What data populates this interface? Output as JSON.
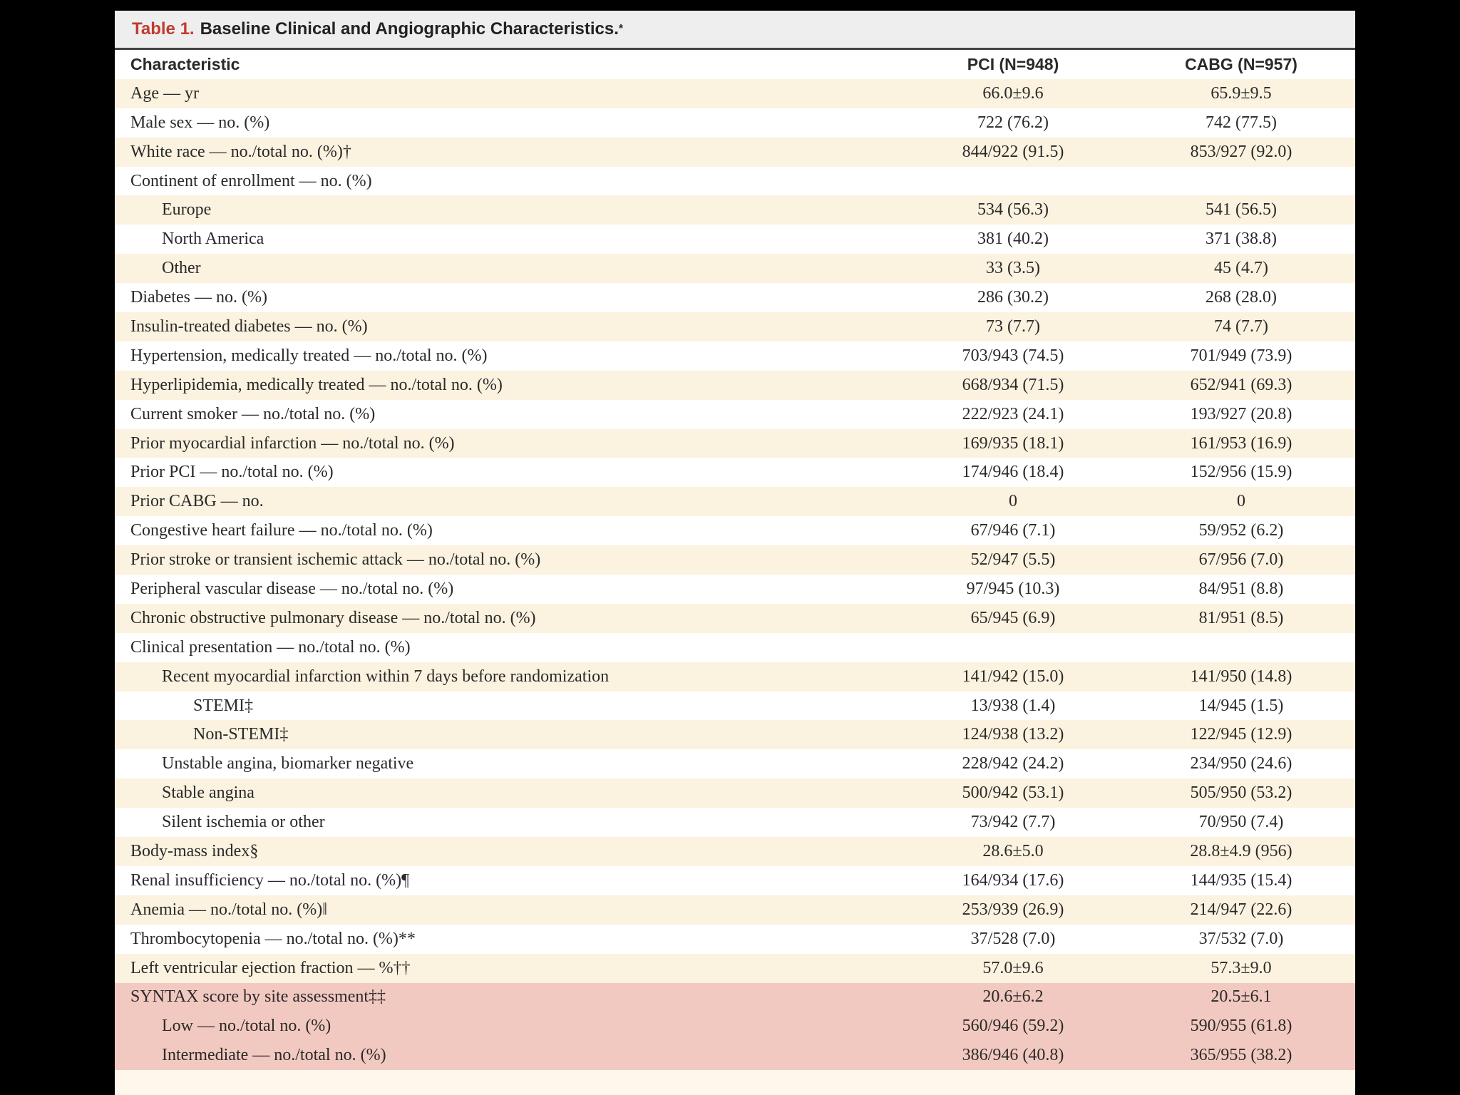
{
  "table": {
    "label": "Table 1.",
    "title": "Baseline Clinical and Angiographic Characteristics.",
    "title_mark": "*",
    "headers": [
      "Characteristic",
      "PCI (N=948)",
      "CABG (N=957)"
    ],
    "rows": [
      {
        "c": "Age — yr",
        "pci": "66.0±9.6",
        "cabg": "65.9±9.5",
        "indent": 0,
        "highlight": false
      },
      {
        "c": "Male sex — no. (%)",
        "pci": "722 (76.2)",
        "cabg": "742 (77.5)",
        "indent": 0,
        "highlight": false
      },
      {
        "c": "White race — no./total no. (%)†",
        "pci": "844/922 (91.5)",
        "cabg": "853/927 (92.0)",
        "indent": 0,
        "highlight": false
      },
      {
        "c": "Continent of enrollment — no. (%)",
        "pci": "",
        "cabg": "",
        "indent": 0,
        "highlight": false
      },
      {
        "c": "Europe",
        "pci": "534 (56.3)",
        "cabg": "541 (56.5)",
        "indent": 1,
        "highlight": false
      },
      {
        "c": "North America",
        "pci": "381 (40.2)",
        "cabg": "371 (38.8)",
        "indent": 1,
        "highlight": false
      },
      {
        "c": "Other",
        "pci": "33 (3.5)",
        "cabg": "45 (4.7)",
        "indent": 1,
        "highlight": false
      },
      {
        "c": "Diabetes — no. (%)",
        "pci": "286 (30.2)",
        "cabg": "268 (28.0)",
        "indent": 0,
        "highlight": false
      },
      {
        "c": "Insulin-treated diabetes — no. (%)",
        "pci": "73 (7.7)",
        "cabg": "74 (7.7)",
        "indent": 0,
        "highlight": false
      },
      {
        "c": "Hypertension, medically treated — no./total no. (%)",
        "pci": "703/943 (74.5)",
        "cabg": "701/949 (73.9)",
        "indent": 0,
        "highlight": false
      },
      {
        "c": "Hyperlipidemia, medically treated — no./total no. (%)",
        "pci": "668/934 (71.5)",
        "cabg": "652/941 (69.3)",
        "indent": 0,
        "highlight": false
      },
      {
        "c": "Current smoker — no./total no. (%)",
        "pci": "222/923 (24.1)",
        "cabg": "193/927 (20.8)",
        "indent": 0,
        "highlight": false
      },
      {
        "c": "Prior myocardial infarction — no./total no. (%)",
        "pci": "169/935 (18.1)",
        "cabg": "161/953 (16.9)",
        "indent": 0,
        "highlight": false
      },
      {
        "c": "Prior PCI — no./total no. (%)",
        "pci": "174/946 (18.4)",
        "cabg": "152/956 (15.9)",
        "indent": 0,
        "highlight": false
      },
      {
        "c": "Prior CABG — no.",
        "pci": "0",
        "cabg": "0",
        "indent": 0,
        "highlight": false
      },
      {
        "c": "Congestive heart failure — no./total no. (%)",
        "pci": "67/946 (7.1)",
        "cabg": "59/952 (6.2)",
        "indent": 0,
        "highlight": false
      },
      {
        "c": "Prior stroke or transient ischemic attack — no./total no. (%)",
        "pci": "52/947 (5.5)",
        "cabg": "67/956 (7.0)",
        "indent": 0,
        "highlight": false
      },
      {
        "c": "Peripheral vascular disease — no./total no. (%)",
        "pci": "97/945 (10.3)",
        "cabg": "84/951 (8.8)",
        "indent": 0,
        "highlight": false
      },
      {
        "c": "Chronic obstructive pulmonary disease — no./total no. (%)",
        "pci": "65/945 (6.9)",
        "cabg": "81/951 (8.5)",
        "indent": 0,
        "highlight": false
      },
      {
        "c": "Clinical presentation — no./total no. (%)",
        "pci": "",
        "cabg": "",
        "indent": 0,
        "highlight": false
      },
      {
        "c": "Recent myocardial infarction within 7 days before randomization",
        "pci": "141/942 (15.0)",
        "cabg": "141/950 (14.8)",
        "indent": 1,
        "highlight": false
      },
      {
        "c": "STEMI‡",
        "pci": "13/938 (1.4)",
        "cabg": "14/945 (1.5)",
        "indent": 2,
        "highlight": false
      },
      {
        "c": "Non-STEMI‡",
        "pci": "124/938 (13.2)",
        "cabg": "122/945 (12.9)",
        "indent": 2,
        "highlight": false
      },
      {
        "c": "Unstable angina, biomarker negative",
        "pci": "228/942 (24.2)",
        "cabg": "234/950 (24.6)",
        "indent": 1,
        "highlight": false
      },
      {
        "c": "Stable angina",
        "pci": "500/942 (53.1)",
        "cabg": "505/950 (53.2)",
        "indent": 1,
        "highlight": false
      },
      {
        "c": "Silent ischemia or other",
        "pci": "73/942 (7.7)",
        "cabg": "70/950 (7.4)",
        "indent": 1,
        "highlight": false
      },
      {
        "c": "Body-mass index§",
        "pci": "28.6±5.0",
        "cabg": "28.8±4.9 (956)",
        "indent": 0,
        "highlight": false
      },
      {
        "c": "Renal insufficiency — no./total no. (%)¶",
        "pci": "164/934 (17.6)",
        "cabg": "144/935 (15.4)",
        "indent": 0,
        "highlight": false
      },
      {
        "c": "Anemia — no./total no. (%)‖",
        "pci": "253/939 (26.9)",
        "cabg": "214/947 (22.6)",
        "indent": 0,
        "highlight": false
      },
      {
        "c": "Thrombocytopenia — no./total no. (%)**",
        "pci": "37/528 (7.0)",
        "cabg": "37/532 (7.0)",
        "indent": 0,
        "highlight": false
      },
      {
        "c": "Left ventricular ejection fraction — %††",
        "pci": "57.0±9.6",
        "cabg": "57.3±9.0",
        "indent": 0,
        "highlight": false
      },
      {
        "c": "SYNTAX score by site assessment‡‡",
        "pci": "20.6±6.2",
        "cabg": "20.5±6.1",
        "indent": 0,
        "highlight": true
      },
      {
        "c": "Low — no./total no. (%)",
        "pci": "560/946 (59.2)",
        "cabg": "590/955 (61.8)",
        "indent": 1,
        "highlight": true
      },
      {
        "c": "Intermediate — no./total no. (%)",
        "pci": "386/946 (40.8)",
        "cabg": "365/955 (38.2)",
        "indent": 1,
        "highlight": true
      }
    ]
  }
}
